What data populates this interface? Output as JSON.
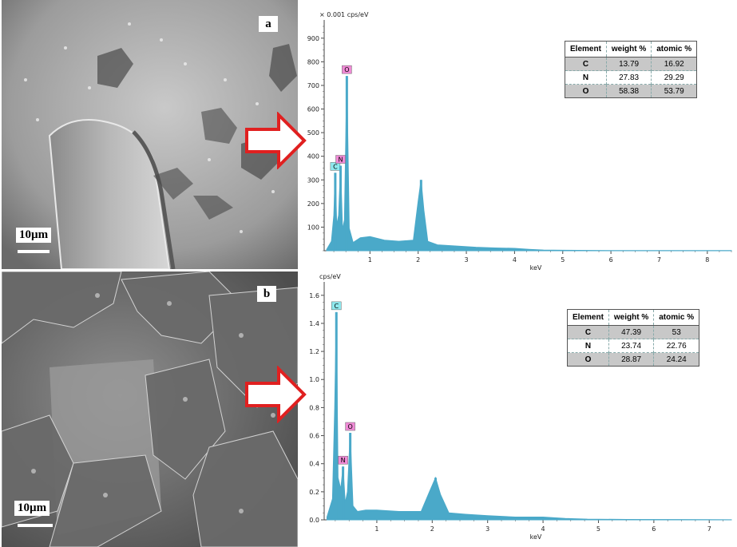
{
  "panels": [
    {
      "label": "a",
      "scale_text": "10µm",
      "composition": {
        "headers": [
          "Element",
          "weight %",
          "atomic %"
        ],
        "rows": [
          {
            "element": "C",
            "weight": "13.79",
            "atomic": "16.92"
          },
          {
            "element": "N",
            "weight": "27.83",
            "atomic": "29.29"
          },
          {
            "element": "O",
            "weight": "58.38",
            "atomic": "53.79"
          }
        ]
      }
    },
    {
      "label": "b",
      "scale_text": "10µm",
      "composition": {
        "headers": [
          "Element",
          "weight %",
          "atomic %"
        ],
        "rows": [
          {
            "element": "C",
            "weight": "47.39",
            "atomic": "53"
          },
          {
            "element": "N",
            "weight": "23.74",
            "atomic": "22.76"
          },
          {
            "element": "O",
            "weight": "28.87",
            "atomic": "24.24"
          }
        ]
      }
    }
  ],
  "colors": {
    "spectrum": "#4aa9c9",
    "arrow": "#e02020",
    "tag_C": "#8fe9ee",
    "tag_NO": "#f08ad6",
    "table_shade": "#c8c8c8"
  },
  "chart_data": [
    {
      "type": "area",
      "title": "",
      "ylabel": "× 0.001 cps/eV",
      "xlabel": "keV",
      "xlim": [
        0.05,
        8.5
      ],
      "ylim": [
        0,
        950
      ],
      "xticks": [
        "1",
        "2",
        "3",
        "4",
        "5",
        "6",
        "7",
        "8"
      ],
      "yticks": [
        "100",
        "200",
        "300",
        "400",
        "500",
        "600",
        "700",
        "800",
        "900"
      ],
      "peaks": [
        {
          "label": "C",
          "x": 0.28,
          "y": 330
        },
        {
          "label": "N",
          "x": 0.39,
          "y": 360
        },
        {
          "label": "O",
          "x": 0.52,
          "y": 740
        },
        {
          "label": "",
          "x": 2.06,
          "y": 300
        }
      ],
      "x": [
        0.1,
        0.2,
        0.25,
        0.28,
        0.31,
        0.35,
        0.39,
        0.43,
        0.47,
        0.52,
        0.57,
        0.65,
        0.8,
        1.0,
        1.3,
        1.6,
        1.9,
        2.0,
        2.06,
        2.12,
        2.2,
        2.4,
        2.8,
        3.2,
        3.6,
        4.0,
        4.3,
        4.6,
        5.0,
        6.0,
        7.0,
        8.0,
        8.5
      ],
      "y": [
        5,
        40,
        150,
        330,
        110,
        150,
        360,
        90,
        130,
        740,
        95,
        35,
        55,
        60,
        45,
        40,
        45,
        210,
        300,
        170,
        40,
        25,
        20,
        15,
        12,
        10,
        6,
        3,
        2,
        1,
        1,
        1,
        1
      ]
    },
    {
      "type": "area",
      "title": "",
      "ylabel": "cps/eV",
      "xlabel": "keV",
      "xlim": [
        0.05,
        7.4
      ],
      "ylim": [
        0,
        1.65
      ],
      "xticks": [
        "1",
        "2",
        "3",
        "4",
        "5",
        "6",
        "7"
      ],
      "yticks": [
        "0.0",
        "0.2",
        "0.4",
        "0.6",
        "0.8",
        "1.0",
        "1.2",
        "1.4",
        "1.6"
      ],
      "peaks": [
        {
          "label": "C",
          "x": 0.27,
          "y": 1.48
        },
        {
          "label": "N",
          "x": 0.39,
          "y": 0.38
        },
        {
          "label": "O",
          "x": 0.52,
          "y": 0.62
        },
        {
          "label": "",
          "x": 2.06,
          "y": 0.3
        }
      ],
      "x": [
        0.1,
        0.2,
        0.24,
        0.27,
        0.3,
        0.35,
        0.39,
        0.43,
        0.47,
        0.52,
        0.57,
        0.65,
        0.8,
        1.0,
        1.4,
        1.8,
        1.95,
        2.06,
        2.15,
        2.3,
        2.6,
        3.0,
        3.5,
        4.0,
        4.4,
        4.8,
        5.5,
        6.5,
        7.4
      ],
      "y": [
        0.02,
        0.15,
        0.8,
        1.48,
        0.3,
        0.22,
        0.38,
        0.12,
        0.2,
        0.62,
        0.1,
        0.06,
        0.07,
        0.07,
        0.06,
        0.06,
        0.2,
        0.3,
        0.18,
        0.05,
        0.04,
        0.03,
        0.02,
        0.02,
        0.01,
        0.005,
        0.003,
        0.002,
        0.001
      ]
    }
  ]
}
